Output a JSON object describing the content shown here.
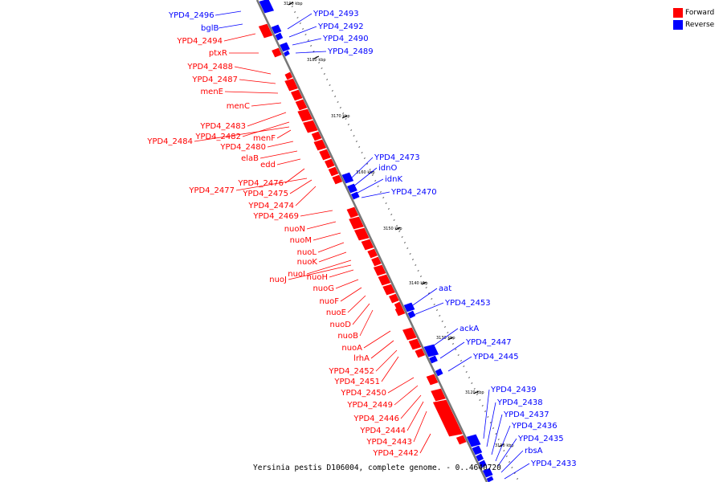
{
  "caption": "Yersinia pestis D106004, complete genome. - 0..4640720",
  "legend": [
    {
      "label": "Forward",
      "color": "#ff0000"
    },
    {
      "label": "Reverse",
      "color": "#0000ff"
    }
  ],
  "colors": {
    "forward": "#ff0000",
    "reverse": "#0000ff",
    "backbone": "#777777",
    "tick": "#000000"
  },
  "ticks": [
    "3190 kbp",
    "3180 kbp",
    "3170 kbp",
    "3160 kbp",
    "3150 kbp",
    "3140 kbp",
    "3130 kbp",
    "3120 kbp",
    "3110 kbp"
  ],
  "forward_labels": [
    "YPD4_2494",
    "ptxR",
    "YPD4_2488",
    "YPD4_2487",
    "menE",
    "menC",
    "YPD4_2483",
    "YPD4_2482",
    "menF",
    "YPD4_2484",
    "YPD4_2480",
    "elaB",
    "edd",
    "YPD4_2476",
    "YPD4_2477",
    "YPD4_2475",
    "YPD4_2474",
    "YPD4_2469",
    "nuoN",
    "nuoM",
    "nuoL",
    "nuoK",
    "nuoI",
    "nuoH",
    "nuoJ",
    "nuoG",
    "nuoF",
    "nuoE",
    "nuoD",
    "nuoB",
    "nuoA",
    "lrhA",
    "YPD4_2452",
    "YPD4_2451",
    "YPD4_2450",
    "YPD4_2449",
    "YPD4_2446",
    "YPD4_2444",
    "YPD4_2443",
    "YPD4_2442"
  ],
  "reverse_labels": [
    "YPD4_2496",
    "bglB",
    "YPD4_2493",
    "YPD4_2492",
    "YPD4_2490",
    "YPD4_2489",
    "YPD4_2473",
    "idnO",
    "idnK",
    "YPD4_2470",
    "aat",
    "YPD4_2453",
    "ackA",
    "YPD4_2447",
    "YPD4_2445",
    "YPD4_2439",
    "YPD4_2438",
    "YPD4_2437",
    "YPD4_2436",
    "YPD4_2435",
    "rbsA",
    "YPD4_2433"
  ]
}
